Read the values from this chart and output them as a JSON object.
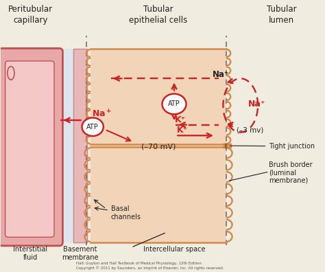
{
  "bg_color": "#f0ece0",
  "cap_fill": "#e8a8a8",
  "cap_inner": "#f5c8c8",
  "cap_outer": "#cc6666",
  "cap_dark": "#c05050",
  "interstitial_fill": "#dce4ee",
  "basement_fill": "#e8b8b8",
  "basement_border": "#cc8888",
  "cell_fill": "#f2d5b8",
  "cell_border": "#d4884a",
  "white": "#ffffff",
  "arrow_color": "#cc2222",
  "text_color": "#111111",
  "dark_text": "#222222",
  "header_peritubular": "Peritubular\ncapillary",
  "header_tubular": "Tubular\nepithelial cells",
  "header_lumen": "Tubular\nlumen",
  "label_interstitial": "Interstitial\nfluid",
  "label_basement": "Basement\nmembrane",
  "label_intercellular": "Intercellular space",
  "label_na_top": "Na⁺",
  "label_na_mid": "Na⁺",
  "label_na_lumen": "Na⁺",
  "label_atp": "ATP",
  "label_kplus1": "K⁺",
  "label_kplus2": "K⁺",
  "label_70mv": "(–70 mV)",
  "label_3mv": "(–3 mv)",
  "label_tight": "Tight junction",
  "label_brush": "Brush border\n(luminal\nmembrane)",
  "label_basal": "Basal\nchannels",
  "copyright": "Hall: Guyton and Hall Textbook of Medical Physiology, 12th Edition\nCopyright © 2011 by Saunders, an imprint of Elsevier, Inc. All rights reserved."
}
